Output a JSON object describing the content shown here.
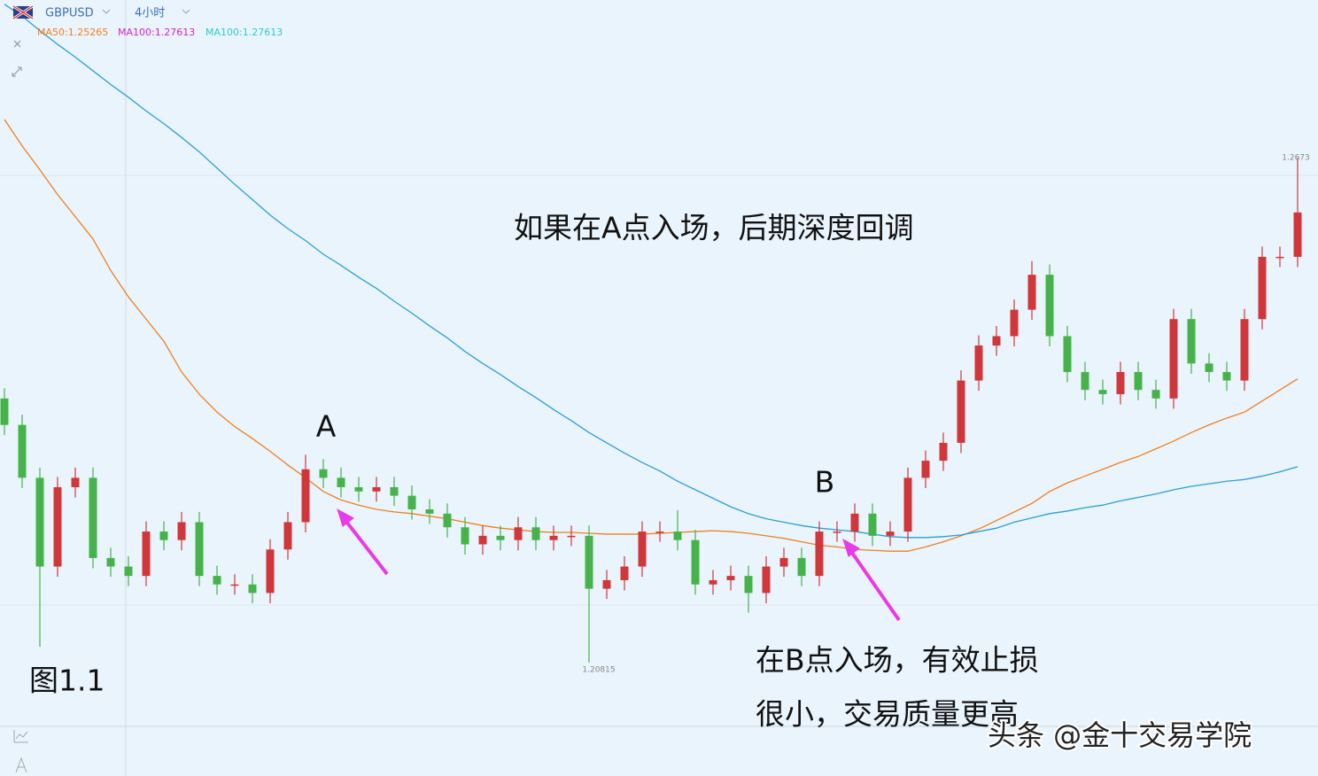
{
  "chart_data": {
    "type": "candlestick",
    "symbol": "GBPUSD",
    "timeframe": "4小时",
    "ylim": [
      1.19485,
      1.2858
    ],
    "up_color": "#d0363a",
    "down_color": "#45b34a",
    "open": [
      1.2391,
      1.236,
      1.2298,
      1.2194,
      1.2287,
      1.2298,
      1.2204,
      1.2194,
      1.2183,
      1.2235,
      1.2225,
      1.2246,
      1.2183,
      1.2173,
      1.2173,
      1.2163,
      1.2214,
      1.2246,
      1.2308,
      1.2298,
      1.2287,
      1.2282,
      1.2287,
      1.2277,
      1.2261,
      1.2256,
      1.224,
      1.222,
      1.223,
      1.2225,
      1.224,
      1.2225,
      1.223,
      1.223,
      1.2168,
      1.2178,
      1.2194,
      1.2235,
      1.2235,
      1.2225,
      1.2173,
      1.2178,
      1.2183,
      1.2163,
      1.2194,
      1.2204,
      1.2183,
      1.2235,
      1.2235,
      1.2256,
      1.223,
      1.2235,
      1.2298,
      1.2318,
      1.2339,
      1.2412,
      1.2453,
      1.2464,
      1.2495,
      1.2536,
      1.2464,
      1.2422,
      1.2401,
      1.2396,
      1.2422,
      1.2401,
      1.2391,
      1.2484,
      1.2432,
      1.2422,
      1.2412,
      1.2484,
      1.2557,
      1.2557
    ],
    "high": [
      1.2403,
      1.2372,
      1.231,
      1.2299,
      1.231,
      1.231,
      1.2216,
      1.2206,
      1.2247,
      1.2247,
      1.2258,
      1.2258,
      1.2195,
      1.2185,
      1.2185,
      1.2226,
      1.2258,
      1.2325,
      1.232,
      1.231,
      1.2299,
      1.2299,
      1.2299,
      1.2289,
      1.2273,
      1.2268,
      1.2252,
      1.2242,
      1.2242,
      1.2252,
      1.2252,
      1.2242,
      1.2242,
      1.2242,
      1.219,
      1.2206,
      1.2247,
      1.2247,
      1.226,
      1.2237,
      1.219,
      1.2195,
      1.2195,
      1.2206,
      1.2216,
      1.2216,
      1.2247,
      1.2247,
      1.2268,
      1.2268,
      1.2247,
      1.231,
      1.233,
      1.2351,
      1.2424,
      1.2465,
      1.2476,
      1.2507,
      1.2552,
      1.2548,
      1.2476,
      1.2434,
      1.2413,
      1.2434,
      1.2434,
      1.2413,
      1.2496,
      1.2496,
      1.2444,
      1.2434,
      1.2496,
      1.2569,
      1.2569,
      1.2673
    ],
    "low": [
      1.2348,
      1.2286,
      1.21,
      1.2182,
      1.2275,
      1.2192,
      1.2182,
      1.2171,
      1.2171,
      1.2213,
      1.2213,
      1.2171,
      1.2161,
      1.2161,
      1.2151,
      1.2151,
      1.2202,
      1.2234,
      1.2286,
      1.2275,
      1.227,
      1.227,
      1.2265,
      1.2249,
      1.2244,
      1.2228,
      1.2208,
      1.2208,
      1.2213,
      1.2213,
      1.2213,
      1.2213,
      1.2218,
      1.20815,
      1.2156,
      1.2166,
      1.2182,
      1.2223,
      1.2213,
      1.2161,
      1.2161,
      1.2166,
      1.214,
      1.2151,
      1.2182,
      1.2171,
      1.2171,
      1.2223,
      1.2223,
      1.2218,
      1.2218,
      1.2223,
      1.2286,
      1.2306,
      1.2327,
      1.24,
      1.2441,
      1.2452,
      1.2483,
      1.2452,
      1.241,
      1.2389,
      1.2384,
      1.2384,
      1.2389,
      1.2379,
      1.2379,
      1.242,
      1.241,
      1.24,
      1.24,
      1.2472,
      1.2545,
      1.2545
    ],
    "close": [
      1.236,
      1.2298,
      1.2194,
      1.2287,
      1.2298,
      1.2204,
      1.2194,
      1.2183,
      1.2235,
      1.2225,
      1.2246,
      1.2183,
      1.2173,
      1.2173,
      1.2163,
      1.2214,
      1.2246,
      1.2308,
      1.2298,
      1.2287,
      1.2282,
      1.2287,
      1.2277,
      1.2261,
      1.2256,
      1.224,
      1.222,
      1.223,
      1.2225,
      1.224,
      1.2225,
      1.223,
      1.223,
      1.2168,
      1.2178,
      1.2194,
      1.2235,
      1.2235,
      1.2225,
      1.2173,
      1.2178,
      1.2183,
      1.2163,
      1.2194,
      1.2204,
      1.2183,
      1.2235,
      1.2235,
      1.2256,
      1.223,
      1.2235,
      1.2298,
      1.2318,
      1.2339,
      1.2412,
      1.2453,
      1.2464,
      1.2495,
      1.2536,
      1.2464,
      1.2422,
      1.2401,
      1.2396,
      1.2422,
      1.2401,
      1.2391,
      1.2484,
      1.2432,
      1.2422,
      1.2412,
      1.2484,
      1.2557,
      1.2557,
      1.2609
    ],
    "series": [
      {
        "name": "MA50:1.25265",
        "color": "#f07f1e",
        "values": [
          1.2718,
          1.2687,
          1.2659,
          1.263,
          1.2604,
          1.2578,
          1.2541,
          1.251,
          1.2484,
          1.2458,
          1.2422,
          1.2396,
          1.2375,
          1.2358,
          1.2344,
          1.2329,
          1.2313,
          1.2298,
          1.2282,
          1.2272,
          1.2266,
          1.2261,
          1.2258,
          1.2256,
          1.2253,
          1.225,
          1.2246,
          1.2242,
          1.2239,
          1.2237,
          1.2235,
          1.2234,
          1.2234,
          1.2233,
          1.2232,
          1.2232,
          1.2232,
          1.2233,
          1.2234,
          1.2235,
          1.2236,
          1.2235,
          1.2233,
          1.223,
          1.2227,
          1.2223,
          1.2219,
          1.2217,
          1.2214,
          1.2213,
          1.2212,
          1.2212,
          1.2217,
          1.2223,
          1.223,
          1.2238,
          1.2248,
          1.2258,
          1.2268,
          1.2282,
          1.2292,
          1.23,
          1.2308,
          1.2316,
          1.2323,
          1.2332,
          1.2341,
          1.2351,
          1.236,
          1.2368,
          1.2375,
          1.2388,
          1.2401,
          1.2414
        ]
      },
      {
        "name": "MA100:1.27613",
        "color": "#2a9fd8",
        "values": [
          1.2853,
          1.2839,
          1.2822,
          1.2806,
          1.2791,
          1.2775,
          1.2759,
          1.2744,
          1.2728,
          1.2713,
          1.2697,
          1.268,
          1.2661,
          1.2642,
          1.2624,
          1.2606,
          1.259,
          1.2576,
          1.256,
          1.2547,
          1.2533,
          1.252,
          1.2505,
          1.2491,
          1.2476,
          1.2462,
          1.2446,
          1.2432,
          1.2419,
          1.2405,
          1.2392,
          1.2378,
          1.2365,
          1.2351,
          1.2339,
          1.2327,
          1.2316,
          1.2306,
          1.2294,
          1.2284,
          1.2274,
          1.2264,
          1.2256,
          1.225,
          1.2246,
          1.2242,
          1.2239,
          1.2237,
          1.2235,
          1.2232,
          1.2229,
          1.2228,
          1.2228,
          1.2229,
          1.2231,
          1.2235,
          1.2239,
          1.2246,
          1.2251,
          1.2256,
          1.2259,
          1.2263,
          1.2266,
          1.2271,
          1.2275,
          1.2279,
          1.2284,
          1.2288,
          1.2291,
          1.2294,
          1.2296,
          1.23,
          1.2305,
          1.2311
        ]
      }
    ],
    "other_indicators": [
      {
        "name": "MA100:1.27613",
        "color": "#d21fd2"
      }
    ],
    "price_labels": {
      "high": 1.2673,
      "low": 1.20815
    },
    "annotations": {
      "point_a": "A",
      "point_b": "B",
      "note_a": "如果在A点入场，后期深度回调",
      "note_b_1": "在B点入场，有效止损",
      "note_b_2": "很小，交易质量更高",
      "figure": "图1.1",
      "watermark": "头条 @金十交易学院"
    }
  }
}
